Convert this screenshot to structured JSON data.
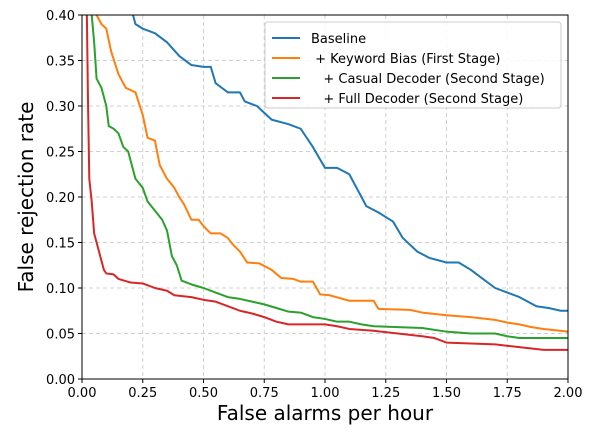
{
  "chart_data": {
    "type": "line",
    "title": "",
    "xlabel": "False alarms per hour",
    "ylabel": "False rejection rate",
    "xlim": [
      0,
      2
    ],
    "ylim": [
      0,
      0.4
    ],
    "grid": true,
    "legend_placement": "top-right",
    "xticks": [
      "0.00",
      "0.25",
      "0.50",
      "0.75",
      "1.00",
      "1.25",
      "1.50",
      "1.75",
      "2.00"
    ],
    "yticks": [
      "0.00",
      "0.05",
      "0.10",
      "0.15",
      "0.20",
      "0.25",
      "0.30",
      "0.35",
      "0.40"
    ],
    "series": [
      {
        "name": "Baseline",
        "color": "#1f77b4",
        "points": [
          [
            0.21,
            0.4
          ],
          [
            0.22,
            0.39
          ],
          [
            0.25,
            0.385
          ],
          [
            0.3,
            0.38
          ],
          [
            0.35,
            0.37
          ],
          [
            0.4,
            0.355
          ],
          [
            0.45,
            0.345
          ],
          [
            0.5,
            0.343
          ],
          [
            0.53,
            0.343
          ],
          [
            0.55,
            0.325
          ],
          [
            0.6,
            0.315
          ],
          [
            0.65,
            0.315
          ],
          [
            0.67,
            0.305
          ],
          [
            0.72,
            0.3
          ],
          [
            0.78,
            0.285
          ],
          [
            0.85,
            0.28
          ],
          [
            0.9,
            0.275
          ],
          [
            0.95,
            0.255
          ],
          [
            1.0,
            0.232
          ],
          [
            1.05,
            0.232
          ],
          [
            1.1,
            0.225
          ],
          [
            1.13,
            0.21
          ],
          [
            1.17,
            0.19
          ],
          [
            1.22,
            0.183
          ],
          [
            1.28,
            0.173
          ],
          [
            1.32,
            0.155
          ],
          [
            1.38,
            0.14
          ],
          [
            1.43,
            0.133
          ],
          [
            1.5,
            0.128
          ],
          [
            1.55,
            0.128
          ],
          [
            1.6,
            0.12
          ],
          [
            1.65,
            0.11
          ],
          [
            1.7,
            0.1
          ],
          [
            1.75,
            0.095
          ],
          [
            1.8,
            0.09
          ],
          [
            1.87,
            0.08
          ],
          [
            1.92,
            0.078
          ],
          [
            1.97,
            0.075
          ],
          [
            2.0,
            0.075
          ]
        ]
      },
      {
        "name": " + Keyword Bias (First Stage)",
        "color": "#ff7f0e",
        "points": [
          [
            0.06,
            0.4
          ],
          [
            0.08,
            0.39
          ],
          [
            0.1,
            0.385
          ],
          [
            0.12,
            0.36
          ],
          [
            0.15,
            0.335
          ],
          [
            0.18,
            0.32
          ],
          [
            0.22,
            0.315
          ],
          [
            0.25,
            0.29
          ],
          [
            0.27,
            0.265
          ],
          [
            0.3,
            0.262
          ],
          [
            0.32,
            0.235
          ],
          [
            0.35,
            0.22
          ],
          [
            0.38,
            0.21
          ],
          [
            0.4,
            0.2
          ],
          [
            0.42,
            0.192
          ],
          [
            0.45,
            0.175
          ],
          [
            0.48,
            0.175
          ],
          [
            0.5,
            0.168
          ],
          [
            0.53,
            0.16
          ],
          [
            0.57,
            0.16
          ],
          [
            0.6,
            0.155
          ],
          [
            0.62,
            0.148
          ],
          [
            0.65,
            0.14
          ],
          [
            0.68,
            0.128
          ],
          [
            0.73,
            0.127
          ],
          [
            0.78,
            0.12
          ],
          [
            0.82,
            0.111
          ],
          [
            0.87,
            0.11
          ],
          [
            0.9,
            0.107
          ],
          [
            0.95,
            0.107
          ],
          [
            0.98,
            0.093
          ],
          [
            1.02,
            0.092
          ],
          [
            1.1,
            0.086
          ],
          [
            1.2,
            0.086
          ],
          [
            1.22,
            0.077
          ],
          [
            1.35,
            0.076
          ],
          [
            1.4,
            0.073
          ],
          [
            1.5,
            0.07
          ],
          [
            1.6,
            0.068
          ],
          [
            1.7,
            0.065
          ],
          [
            1.75,
            0.062
          ],
          [
            1.8,
            0.06
          ],
          [
            1.85,
            0.057
          ],
          [
            1.9,
            0.055
          ],
          [
            2.0,
            0.052
          ]
        ]
      },
      {
        "name": "   + Casual Decoder (Second Stage)",
        "color": "#2ca02c",
        "points": [
          [
            0.04,
            0.4
          ],
          [
            0.05,
            0.37
          ],
          [
            0.06,
            0.33
          ],
          [
            0.08,
            0.32
          ],
          [
            0.1,
            0.3
          ],
          [
            0.11,
            0.278
          ],
          [
            0.13,
            0.275
          ],
          [
            0.15,
            0.27
          ],
          [
            0.17,
            0.255
          ],
          [
            0.19,
            0.25
          ],
          [
            0.2,
            0.24
          ],
          [
            0.22,
            0.22
          ],
          [
            0.25,
            0.21
          ],
          [
            0.27,
            0.195
          ],
          [
            0.3,
            0.185
          ],
          [
            0.33,
            0.175
          ],
          [
            0.35,
            0.163
          ],
          [
            0.37,
            0.135
          ],
          [
            0.39,
            0.125
          ],
          [
            0.41,
            0.108
          ],
          [
            0.45,
            0.104
          ],
          [
            0.5,
            0.1
          ],
          [
            0.55,
            0.095
          ],
          [
            0.6,
            0.09
          ],
          [
            0.65,
            0.088
          ],
          [
            0.7,
            0.085
          ],
          [
            0.75,
            0.082
          ],
          [
            0.8,
            0.078
          ],
          [
            0.85,
            0.074
          ],
          [
            0.9,
            0.073
          ],
          [
            0.95,
            0.068
          ],
          [
            1.0,
            0.066
          ],
          [
            1.05,
            0.063
          ],
          [
            1.1,
            0.063
          ],
          [
            1.15,
            0.06
          ],
          [
            1.2,
            0.058
          ],
          [
            1.3,
            0.057
          ],
          [
            1.4,
            0.056
          ],
          [
            1.5,
            0.052
          ],
          [
            1.6,
            0.05
          ],
          [
            1.7,
            0.05
          ],
          [
            1.75,
            0.047
          ],
          [
            1.8,
            0.045
          ],
          [
            2.0,
            0.045
          ]
        ]
      },
      {
        "name": "   + Full Decoder (Second Stage)",
        "color": "#d62728",
        "points": [
          [
            0.02,
            0.4
          ],
          [
            0.025,
            0.3
          ],
          [
            0.03,
            0.22
          ],
          [
            0.04,
            0.195
          ],
          [
            0.05,
            0.16
          ],
          [
            0.07,
            0.14
          ],
          [
            0.09,
            0.12
          ],
          [
            0.1,
            0.116
          ],
          [
            0.13,
            0.115
          ],
          [
            0.15,
            0.11
          ],
          [
            0.2,
            0.106
          ],
          [
            0.25,
            0.105
          ],
          [
            0.3,
            0.1
          ],
          [
            0.35,
            0.097
          ],
          [
            0.38,
            0.092
          ],
          [
            0.45,
            0.09
          ],
          [
            0.5,
            0.087
          ],
          [
            0.55,
            0.085
          ],
          [
            0.6,
            0.08
          ],
          [
            0.65,
            0.075
          ],
          [
            0.7,
            0.072
          ],
          [
            0.75,
            0.068
          ],
          [
            0.8,
            0.063
          ],
          [
            0.85,
            0.06
          ],
          [
            0.9,
            0.06
          ],
          [
            1.0,
            0.06
          ],
          [
            1.05,
            0.058
          ],
          [
            1.1,
            0.055
          ],
          [
            1.2,
            0.053
          ],
          [
            1.3,
            0.05
          ],
          [
            1.4,
            0.047
          ],
          [
            1.45,
            0.045
          ],
          [
            1.5,
            0.04
          ],
          [
            1.7,
            0.038
          ],
          [
            1.8,
            0.035
          ],
          [
            1.9,
            0.032
          ],
          [
            2.0,
            0.032
          ]
        ]
      }
    ]
  }
}
